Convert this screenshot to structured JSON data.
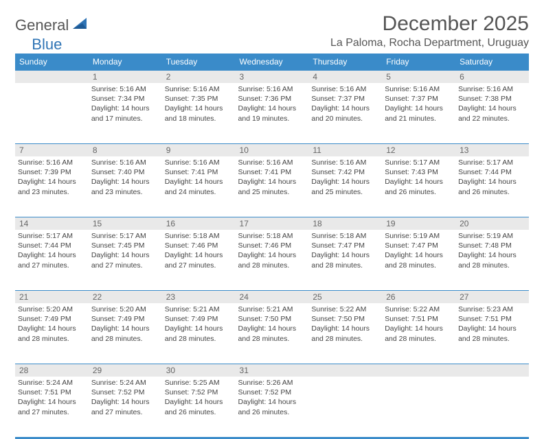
{
  "brand": {
    "part1": "General",
    "part2": "Blue"
  },
  "colors": {
    "header_bg": "#3a8bc9",
    "header_text": "#ffffff",
    "daynum_bg": "#e9e9e9",
    "daynum_text": "#666666",
    "body_text": "#444444",
    "title_text": "#555555",
    "cell_border": "#3a8bc9"
  },
  "title": "December 2025",
  "location": "La Paloma, Rocha Department, Uruguay",
  "day_headers": [
    "Sunday",
    "Monday",
    "Tuesday",
    "Wednesday",
    "Thursday",
    "Friday",
    "Saturday"
  ],
  "weeks": [
    [
      {
        "day": ""
      },
      {
        "day": "1",
        "sunrise": "Sunrise: 5:16 AM",
        "sunset": "Sunset: 7:34 PM",
        "daylight": "Daylight: 14 hours and 17 minutes."
      },
      {
        "day": "2",
        "sunrise": "Sunrise: 5:16 AM",
        "sunset": "Sunset: 7:35 PM",
        "daylight": "Daylight: 14 hours and 18 minutes."
      },
      {
        "day": "3",
        "sunrise": "Sunrise: 5:16 AM",
        "sunset": "Sunset: 7:36 PM",
        "daylight": "Daylight: 14 hours and 19 minutes."
      },
      {
        "day": "4",
        "sunrise": "Sunrise: 5:16 AM",
        "sunset": "Sunset: 7:37 PM",
        "daylight": "Daylight: 14 hours and 20 minutes."
      },
      {
        "day": "5",
        "sunrise": "Sunrise: 5:16 AM",
        "sunset": "Sunset: 7:37 PM",
        "daylight": "Daylight: 14 hours and 21 minutes."
      },
      {
        "day": "6",
        "sunrise": "Sunrise: 5:16 AM",
        "sunset": "Sunset: 7:38 PM",
        "daylight": "Daylight: 14 hours and 22 minutes."
      }
    ],
    [
      {
        "day": "7",
        "sunrise": "Sunrise: 5:16 AM",
        "sunset": "Sunset: 7:39 PM",
        "daylight": "Daylight: 14 hours and 23 minutes."
      },
      {
        "day": "8",
        "sunrise": "Sunrise: 5:16 AM",
        "sunset": "Sunset: 7:40 PM",
        "daylight": "Daylight: 14 hours and 23 minutes."
      },
      {
        "day": "9",
        "sunrise": "Sunrise: 5:16 AM",
        "sunset": "Sunset: 7:41 PM",
        "daylight": "Daylight: 14 hours and 24 minutes."
      },
      {
        "day": "10",
        "sunrise": "Sunrise: 5:16 AM",
        "sunset": "Sunset: 7:41 PM",
        "daylight": "Daylight: 14 hours and 25 minutes."
      },
      {
        "day": "11",
        "sunrise": "Sunrise: 5:16 AM",
        "sunset": "Sunset: 7:42 PM",
        "daylight": "Daylight: 14 hours and 25 minutes."
      },
      {
        "day": "12",
        "sunrise": "Sunrise: 5:17 AM",
        "sunset": "Sunset: 7:43 PM",
        "daylight": "Daylight: 14 hours and 26 minutes."
      },
      {
        "day": "13",
        "sunrise": "Sunrise: 5:17 AM",
        "sunset": "Sunset: 7:44 PM",
        "daylight": "Daylight: 14 hours and 26 minutes."
      }
    ],
    [
      {
        "day": "14",
        "sunrise": "Sunrise: 5:17 AM",
        "sunset": "Sunset: 7:44 PM",
        "daylight": "Daylight: 14 hours and 27 minutes."
      },
      {
        "day": "15",
        "sunrise": "Sunrise: 5:17 AM",
        "sunset": "Sunset: 7:45 PM",
        "daylight": "Daylight: 14 hours and 27 minutes."
      },
      {
        "day": "16",
        "sunrise": "Sunrise: 5:18 AM",
        "sunset": "Sunset: 7:46 PM",
        "daylight": "Daylight: 14 hours and 27 minutes."
      },
      {
        "day": "17",
        "sunrise": "Sunrise: 5:18 AM",
        "sunset": "Sunset: 7:46 PM",
        "daylight": "Daylight: 14 hours and 28 minutes."
      },
      {
        "day": "18",
        "sunrise": "Sunrise: 5:18 AM",
        "sunset": "Sunset: 7:47 PM",
        "daylight": "Daylight: 14 hours and 28 minutes."
      },
      {
        "day": "19",
        "sunrise": "Sunrise: 5:19 AM",
        "sunset": "Sunset: 7:47 PM",
        "daylight": "Daylight: 14 hours and 28 minutes."
      },
      {
        "day": "20",
        "sunrise": "Sunrise: 5:19 AM",
        "sunset": "Sunset: 7:48 PM",
        "daylight": "Daylight: 14 hours and 28 minutes."
      }
    ],
    [
      {
        "day": "21",
        "sunrise": "Sunrise: 5:20 AM",
        "sunset": "Sunset: 7:49 PM",
        "daylight": "Daylight: 14 hours and 28 minutes."
      },
      {
        "day": "22",
        "sunrise": "Sunrise: 5:20 AM",
        "sunset": "Sunset: 7:49 PM",
        "daylight": "Daylight: 14 hours and 28 minutes."
      },
      {
        "day": "23",
        "sunrise": "Sunrise: 5:21 AM",
        "sunset": "Sunset: 7:49 PM",
        "daylight": "Daylight: 14 hours and 28 minutes."
      },
      {
        "day": "24",
        "sunrise": "Sunrise: 5:21 AM",
        "sunset": "Sunset: 7:50 PM",
        "daylight": "Daylight: 14 hours and 28 minutes."
      },
      {
        "day": "25",
        "sunrise": "Sunrise: 5:22 AM",
        "sunset": "Sunset: 7:50 PM",
        "daylight": "Daylight: 14 hours and 28 minutes."
      },
      {
        "day": "26",
        "sunrise": "Sunrise: 5:22 AM",
        "sunset": "Sunset: 7:51 PM",
        "daylight": "Daylight: 14 hours and 28 minutes."
      },
      {
        "day": "27",
        "sunrise": "Sunrise: 5:23 AM",
        "sunset": "Sunset: 7:51 PM",
        "daylight": "Daylight: 14 hours and 28 minutes."
      }
    ],
    [
      {
        "day": "28",
        "sunrise": "Sunrise: 5:24 AM",
        "sunset": "Sunset: 7:51 PM",
        "daylight": "Daylight: 14 hours and 27 minutes."
      },
      {
        "day": "29",
        "sunrise": "Sunrise: 5:24 AM",
        "sunset": "Sunset: 7:52 PM",
        "daylight": "Daylight: 14 hours and 27 minutes."
      },
      {
        "day": "30",
        "sunrise": "Sunrise: 5:25 AM",
        "sunset": "Sunset: 7:52 PM",
        "daylight": "Daylight: 14 hours and 26 minutes."
      },
      {
        "day": "31",
        "sunrise": "Sunrise: 5:26 AM",
        "sunset": "Sunset: 7:52 PM",
        "daylight": "Daylight: 14 hours and 26 minutes."
      },
      {
        "day": ""
      },
      {
        "day": ""
      },
      {
        "day": ""
      }
    ]
  ]
}
